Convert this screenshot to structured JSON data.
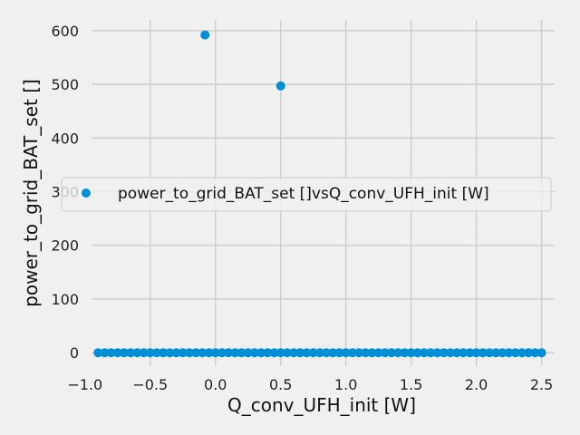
{
  "chart_data": {
    "type": "scatter",
    "title": "",
    "xlabel": "Q_conv_UFH_init [W]",
    "ylabel": "power_to_grid_BAT_set []",
    "xlim": [
      -0.95,
      2.6
    ],
    "ylim": [
      -25,
      620
    ],
    "xticks": [
      -1.0,
      -0.5,
      0.0,
      0.5,
      1.0,
      1.5,
      2.0,
      2.5
    ],
    "xtick_labels": [
      "−1.0",
      "−0.5",
      "0.0",
      "0.5",
      "1.0",
      "1.5",
      "2.0",
      "2.5"
    ],
    "yticks": [
      0,
      100,
      200,
      300,
      400,
      500,
      600
    ],
    "ytick_labels": [
      "0",
      "100",
      "200",
      "300",
      "400",
      "500",
      "600"
    ],
    "grid": true,
    "legend_position": "center",
    "series": [
      {
        "name": "power_to_grid_BAT_set []vsQ_conv_UFH_init [W]",
        "color": "#008fd5",
        "points": [
          {
            "x": -0.08,
            "y": 592
          },
          {
            "x": 0.5,
            "y": 497
          },
          {
            "x": -0.9,
            "y": 0
          },
          {
            "x": -0.85,
            "y": 0
          },
          {
            "x": -0.8,
            "y": 0
          },
          {
            "x": -0.75,
            "y": 0
          },
          {
            "x": -0.7,
            "y": 0
          },
          {
            "x": -0.65,
            "y": 0
          },
          {
            "x": -0.6,
            "y": 0
          },
          {
            "x": -0.55,
            "y": 0
          },
          {
            "x": -0.5,
            "y": 0
          },
          {
            "x": -0.45,
            "y": 0
          },
          {
            "x": -0.4,
            "y": 0
          },
          {
            "x": -0.35,
            "y": 0
          },
          {
            "x": -0.3,
            "y": 0
          },
          {
            "x": -0.25,
            "y": 0
          },
          {
            "x": -0.2,
            "y": 0
          },
          {
            "x": -0.15,
            "y": 0
          },
          {
            "x": -0.1,
            "y": 0
          },
          {
            "x": -0.05,
            "y": 0
          },
          {
            "x": 0.0,
            "y": 0
          },
          {
            "x": 0.05,
            "y": 0
          },
          {
            "x": 0.1,
            "y": 0
          },
          {
            "x": 0.15,
            "y": 0
          },
          {
            "x": 0.2,
            "y": 0
          },
          {
            "x": 0.25,
            "y": 0
          },
          {
            "x": 0.3,
            "y": 0
          },
          {
            "x": 0.35,
            "y": 0
          },
          {
            "x": 0.4,
            "y": 0
          },
          {
            "x": 0.45,
            "y": 0
          },
          {
            "x": 0.5,
            "y": 0
          },
          {
            "x": 0.55,
            "y": 0
          },
          {
            "x": 0.6,
            "y": 0
          },
          {
            "x": 0.65,
            "y": 0
          },
          {
            "x": 0.7,
            "y": 0
          },
          {
            "x": 0.75,
            "y": 0
          },
          {
            "x": 0.8,
            "y": 0
          },
          {
            "x": 0.85,
            "y": 0
          },
          {
            "x": 0.9,
            "y": 0
          },
          {
            "x": 0.95,
            "y": 0
          },
          {
            "x": 1.0,
            "y": 0
          },
          {
            "x": 1.05,
            "y": 0
          },
          {
            "x": 1.1,
            "y": 0
          },
          {
            "x": 1.15,
            "y": 0
          },
          {
            "x": 1.2,
            "y": 0
          },
          {
            "x": 1.25,
            "y": 0
          },
          {
            "x": 1.3,
            "y": 0
          },
          {
            "x": 1.35,
            "y": 0
          },
          {
            "x": 1.4,
            "y": 0
          },
          {
            "x": 1.45,
            "y": 0
          },
          {
            "x": 1.5,
            "y": 0
          },
          {
            "x": 1.55,
            "y": 0
          },
          {
            "x": 1.6,
            "y": 0
          },
          {
            "x": 1.65,
            "y": 0
          },
          {
            "x": 1.7,
            "y": 0
          },
          {
            "x": 1.75,
            "y": 0
          },
          {
            "x": 1.8,
            "y": 0
          },
          {
            "x": 1.85,
            "y": 0
          },
          {
            "x": 1.9,
            "y": 0
          },
          {
            "x": 1.95,
            "y": 0
          },
          {
            "x": 2.0,
            "y": 0
          },
          {
            "x": 2.05,
            "y": 0
          },
          {
            "x": 2.1,
            "y": 0
          },
          {
            "x": 2.15,
            "y": 0
          },
          {
            "x": 2.2,
            "y": 0
          },
          {
            "x": 2.25,
            "y": 0
          },
          {
            "x": 2.3,
            "y": 0
          },
          {
            "x": 2.35,
            "y": 0
          },
          {
            "x": 2.4,
            "y": 0
          },
          {
            "x": 2.45,
            "y": 0
          },
          {
            "x": 2.5,
            "y": 0
          }
        ]
      }
    ]
  }
}
